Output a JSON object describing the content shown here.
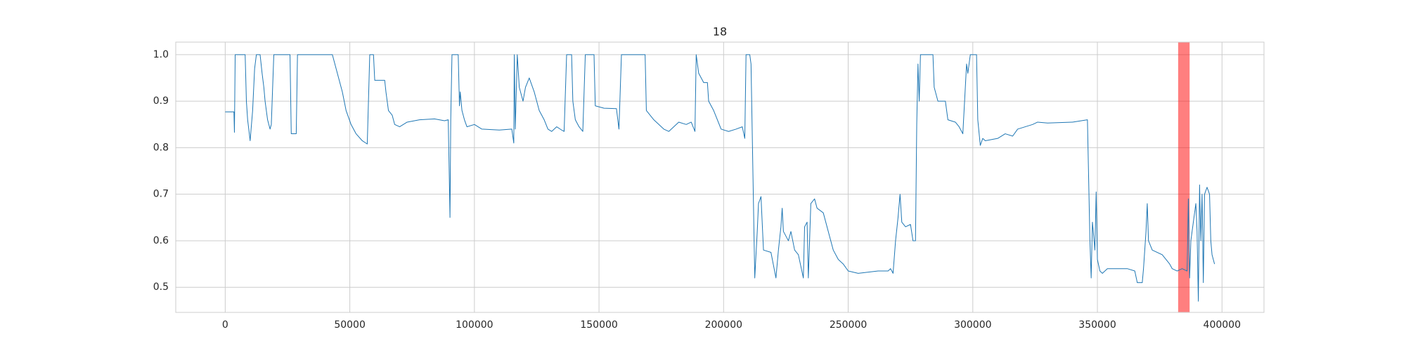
{
  "chart_data": {
    "type": "line",
    "title": "18",
    "x": [
      0,
      3500,
      3700,
      4000,
      8000,
      8500,
      9000,
      10000,
      11000,
      11800,
      12500,
      14000,
      14800,
      15500,
      16000,
      17000,
      18000,
      18500,
      19500,
      26000,
      26500,
      28500,
      29000,
      43000,
      44000,
      45500,
      47000,
      48500,
      50500,
      52500,
      55000,
      57000,
      58000,
      59500,
      60000,
      64000,
      64500,
      65500,
      67000,
      68000,
      70000,
      73000,
      78000,
      84000,
      88000,
      89500,
      90200,
      90500,
      91000,
      93500,
      94000,
      94300,
      95000,
      96000,
      97000,
      100000,
      103000,
      110000,
      115000,
      115800,
      116000,
      116400,
      117200,
      118000,
      119500,
      120500,
      122000,
      124000,
      126000,
      128000,
      129500,
      131000,
      133000,
      135000,
      136000,
      137000,
      139000,
      139500,
      140500,
      142000,
      143500,
      144500,
      148000,
      148500,
      152000,
      157000,
      158000,
      159000,
      168500,
      169000,
      170500,
      172000,
      174000,
      176000,
      178000,
      180000,
      182000,
      185000,
      187000,
      188500,
      189000,
      190000,
      192000,
      193500,
      194000,
      196000,
      197500,
      199000,
      202000,
      205000,
      207500,
      208500,
      209000,
      210500,
      211000,
      212500,
      213500,
      214000,
      215000,
      216000,
      219000,
      221000,
      222000,
      223000,
      223500,
      224000,
      226000,
      227000,
      228500,
      230000,
      232000,
      232500,
      233500,
      234000,
      235000,
      236500,
      237500,
      240000,
      243000,
      244000,
      246000,
      248000,
      250000,
      254000,
      262000,
      266000,
      267000,
      268000,
      269000,
      270000,
      270800,
      271500,
      273000,
      275000,
      276000,
      277000,
      277500,
      278000,
      278500,
      279000,
      284000,
      284500,
      286000,
      289000,
      290000,
      293000,
      294500,
      296000,
      297500,
      298000,
      299000,
      301500,
      302000,
      303000,
      304000,
      305000,
      310000,
      313000,
      316000,
      318000,
      324000,
      326000,
      330000,
      340000,
      346000,
      347000,
      347500,
      348000,
      349000,
      349500,
      350000,
      351000,
      352000,
      354000,
      362000,
      365000,
      366000,
      368000,
      368500,
      369500,
      370000,
      370500,
      372000,
      376000,
      377500,
      379000,
      380000,
      382000,
      384000,
      386000,
      386500,
      387000,
      387500,
      388500,
      389500,
      390000,
      390500,
      391000,
      391500,
      392000,
      392500,
      393000,
      394000,
      395000,
      395500,
      396000,
      397000
    ],
    "series": [
      {
        "color": "#1f77b4",
        "values": [
          0.877,
          0.877,
          0.833,
          1.0,
          1.0,
          0.9,
          0.86,
          0.815,
          0.88,
          0.97,
          1.0,
          1.0,
          0.96,
          0.93,
          0.9,
          0.86,
          0.84,
          0.85,
          1.0,
          1.0,
          0.83,
          0.83,
          1.0,
          1.0,
          0.98,
          0.95,
          0.92,
          0.88,
          0.85,
          0.83,
          0.815,
          0.808,
          1.0,
          1.0,
          0.945,
          0.945,
          0.92,
          0.88,
          0.87,
          0.85,
          0.845,
          0.855,
          0.86,
          0.862,
          0.858,
          0.86,
          0.65,
          0.86,
          1.0,
          1.0,
          0.89,
          0.92,
          0.88,
          0.86,
          0.845,
          0.85,
          0.84,
          0.838,
          0.84,
          0.81,
          1.0,
          0.84,
          1.0,
          0.93,
          0.9,
          0.93,
          0.95,
          0.92,
          0.88,
          0.86,
          0.84,
          0.835,
          0.845,
          0.838,
          0.835,
          1.0,
          1.0,
          0.9,
          0.86,
          0.845,
          0.835,
          1.0,
          1.0,
          0.89,
          0.885,
          0.884,
          0.84,
          1.0,
          1.0,
          0.88,
          0.87,
          0.86,
          0.85,
          0.84,
          0.835,
          0.845,
          0.855,
          0.85,
          0.855,
          0.835,
          1.0,
          0.96,
          0.94,
          0.94,
          0.9,
          0.88,
          0.86,
          0.84,
          0.835,
          0.84,
          0.845,
          0.82,
          1.0,
          1.0,
          0.98,
          0.52,
          0.62,
          0.68,
          0.695,
          0.58,
          0.575,
          0.52,
          0.58,
          0.63,
          0.67,
          0.62,
          0.6,
          0.62,
          0.58,
          0.57,
          0.52,
          0.63,
          0.64,
          0.52,
          0.68,
          0.69,
          0.67,
          0.66,
          0.6,
          0.58,
          0.56,
          0.55,
          0.535,
          0.53,
          0.535,
          0.535,
          0.54,
          0.53,
          0.6,
          0.65,
          0.7,
          0.64,
          0.63,
          0.635,
          0.6,
          0.6,
          0.85,
          0.98,
          0.9,
          1.0,
          1.0,
          0.93,
          0.9,
          0.9,
          0.86,
          0.855,
          0.845,
          0.83,
          0.98,
          0.96,
          1.0,
          1.0,
          0.86,
          0.805,
          0.82,
          0.815,
          0.82,
          0.83,
          0.825,
          0.84,
          0.85,
          0.855,
          0.853,
          0.855,
          0.86,
          0.6,
          0.52,
          0.64,
          0.58,
          0.705,
          0.56,
          0.535,
          0.53,
          0.54,
          0.54,
          0.535,
          0.51,
          0.51,
          0.54,
          0.62,
          0.68,
          0.6,
          0.58,
          0.57,
          0.56,
          0.55,
          0.54,
          0.535,
          0.54,
          0.535,
          0.69,
          0.52,
          0.6,
          0.64,
          0.68,
          0.62,
          0.47,
          0.72,
          0.6,
          0.7,
          0.51,
          0.7,
          0.715,
          0.7,
          0.6,
          0.57,
          0.55
        ]
      }
    ],
    "spans": [
      {
        "x": [
          382400,
          387000
        ],
        "color": "#ff0000",
        "alpha": 0.5
      }
    ],
    "xlim": [
      -19850,
      416850
    ],
    "xticks": [
      0,
      50000,
      100000,
      150000,
      200000,
      250000,
      300000,
      350000,
      400000
    ],
    "ylim": [
      0.446,
      1.027
    ],
    "yticks": [
      0.5,
      0.6,
      0.7,
      0.8,
      0.9,
      {
        "value": 1,
        "label": "1.0"
      }
    ],
    "grid": true
  }
}
